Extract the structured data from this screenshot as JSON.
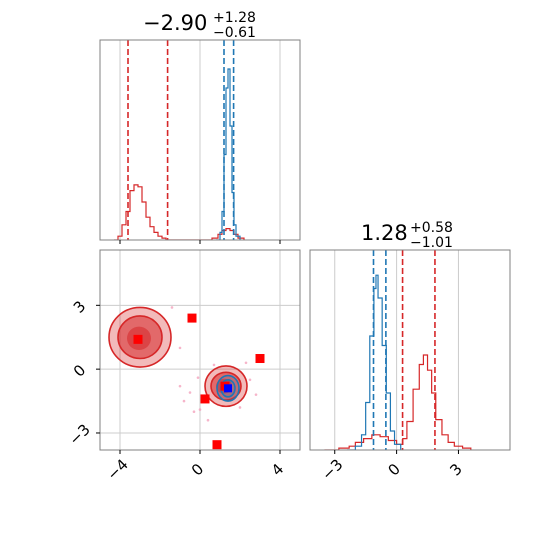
{
  "chart_data": {
    "type": "corner",
    "parameters": [
      "p1",
      "p2"
    ],
    "colors": {
      "red": "#d62728",
      "blue": "#1f77b4",
      "grid": "#cccccc",
      "frame": "#808080",
      "marker_red": "#ff0000",
      "marker_blue": "#0000ff"
    },
    "titles": [
      {
        "main": "−2.90",
        "sup": "+1.28",
        "sub": "−0.61"
      },
      {
        "main": "1.28",
        "sup": "+0.58",
        "sub": "−1.01"
      }
    ],
    "x_axis": {
      "range": [
        -5.0,
        5.0
      ],
      "ticks": [
        -4,
        0,
        4
      ],
      "tick_labels": [
        "−4",
        "0",
        "4"
      ]
    },
    "y_axis": {
      "range": [
        -3.8,
        5.6
      ],
      "ticks": [
        -3,
        0,
        3
      ],
      "tick_labels": [
        "−3",
        "0",
        "3"
      ]
    },
    "p2_axis": {
      "range": [
        -4.2,
        5.5
      ],
      "ticks": [
        -3,
        0,
        3
      ],
      "tick_labels": [
        "−3",
        "0",
        "3"
      ]
    },
    "hist1": {
      "red_lines": [
        -3.6,
        -1.62
      ],
      "blue_lines": [
        1.2,
        1.68
      ],
      "red_series": [
        [
          -4.3,
          0
        ],
        [
          -4.1,
          0.02
        ],
        [
          -3.9,
          0.08
        ],
        [
          -3.7,
          0.15
        ],
        [
          -3.5,
          0.26
        ],
        [
          -3.3,
          0.29
        ],
        [
          -3.1,
          0.28
        ],
        [
          -2.9,
          0.2
        ],
        [
          -2.7,
          0.12
        ],
        [
          -2.5,
          0.07
        ],
        [
          -2.3,
          0.04
        ],
        [
          -2.1,
          0.02
        ],
        [
          -1.9,
          0.01
        ],
        [
          -1.7,
          0
        ],
        [
          0.3,
          0
        ],
        [
          0.6,
          0.01
        ],
        [
          0.9,
          0.03
        ],
        [
          1.1,
          0.05
        ],
        [
          1.3,
          0.06
        ],
        [
          1.5,
          0.05
        ],
        [
          1.7,
          0.03
        ],
        [
          1.9,
          0.01
        ],
        [
          2.2,
          0
        ]
      ],
      "blue_series": [
        [
          0.8,
          0
        ],
        [
          1.0,
          0.04
        ],
        [
          1.1,
          0.15
        ],
        [
          1.2,
          0.45
        ],
        [
          1.3,
          0.8
        ],
        [
          1.4,
          0.9
        ],
        [
          1.5,
          0.6
        ],
        [
          1.6,
          0.25
        ],
        [
          1.7,
          0.08
        ],
        [
          1.8,
          0.02
        ],
        [
          2.0,
          0
        ]
      ]
    },
    "hist2": {
      "red_lines": [
        0.29,
        1.86
      ],
      "blue_lines": [
        -1.12,
        -0.52
      ],
      "red_series": [
        [
          -3.5,
          0
        ],
        [
          -2.8,
          0.01
        ],
        [
          -2.3,
          0.02
        ],
        [
          -2.0,
          0.04
        ],
        [
          -1.6,
          0.06
        ],
        [
          -1.2,
          0.08
        ],
        [
          -0.8,
          0.07
        ],
        [
          -0.4,
          0.05
        ],
        [
          0.0,
          0.03
        ],
        [
          0.3,
          0.06
        ],
        [
          0.5,
          0.15
        ],
        [
          0.8,
          0.32
        ],
        [
          1.1,
          0.45
        ],
        [
          1.3,
          0.5
        ],
        [
          1.5,
          0.42
        ],
        [
          1.7,
          0.3
        ],
        [
          1.9,
          0.16
        ],
        [
          2.2,
          0.08
        ],
        [
          2.5,
          0.04
        ],
        [
          2.8,
          0.02
        ],
        [
          3.2,
          0.01
        ],
        [
          3.6,
          0
        ]
      ],
      "blue_series": [
        [
          -2.4,
          0
        ],
        [
          -2.0,
          0.02
        ],
        [
          -1.7,
          0.08
        ],
        [
          -1.5,
          0.25
        ],
        [
          -1.3,
          0.6
        ],
        [
          -1.1,
          0.85
        ],
        [
          -1.0,
          0.92
        ],
        [
          -0.9,
          0.8
        ],
        [
          -0.7,
          0.55
        ],
        [
          -0.5,
          0.3
        ],
        [
          -0.3,
          0.1
        ],
        [
          -0.1,
          0.03
        ],
        [
          0.2,
          0
        ]
      ]
    },
    "joint": {
      "red_contours": [
        {
          "cx": -3.0,
          "cy": 1.5,
          "rx": 1.55,
          "ry": 1.4,
          "level": "outer"
        },
        {
          "cx": -3.0,
          "cy": 1.5,
          "rx": 1.1,
          "ry": 1.0,
          "level": "mid"
        },
        {
          "cx": 1.3,
          "cy": -0.8,
          "rx": 1.05,
          "ry": 0.95,
          "level": "outer"
        },
        {
          "cx": 1.3,
          "cy": -0.8,
          "rx": 0.75,
          "ry": 0.65,
          "level": "mid"
        }
      ],
      "blue_contours": [
        {
          "cx": 1.4,
          "cy": -0.9,
          "rx": 0.55,
          "ry": 0.6
        },
        {
          "cx": 1.4,
          "cy": -0.9,
          "rx": 0.35,
          "ry": 0.4
        }
      ],
      "red_markers": [
        [
          -3.1,
          1.4
        ],
        [
          -0.4,
          2.4
        ],
        [
          3.0,
          0.5
        ],
        [
          0.25,
          -1.4
        ],
        [
          0.85,
          -3.55
        ],
        [
          1.25,
          -0.8
        ]
      ],
      "blue_markers": [
        [
          1.4,
          -0.9
        ]
      ],
      "scatter_points": [
        [
          -1.0,
          -0.8
        ],
        [
          -0.8,
          -1.5
        ],
        [
          -0.5,
          -1.1
        ],
        [
          -0.3,
          -2.0
        ],
        [
          0.0,
          -1.9
        ],
        [
          2.0,
          -1.8
        ],
        [
          2.5,
          -0.5
        ],
        [
          2.3,
          0.3
        ],
        [
          0.7,
          0.2
        ],
        [
          -1.4,
          2.9
        ],
        [
          -1.0,
          1.0
        ],
        [
          2.8,
          -1.2
        ],
        [
          -0.1,
          -0.4
        ],
        [
          0.4,
          -2.4
        ]
      ]
    }
  }
}
